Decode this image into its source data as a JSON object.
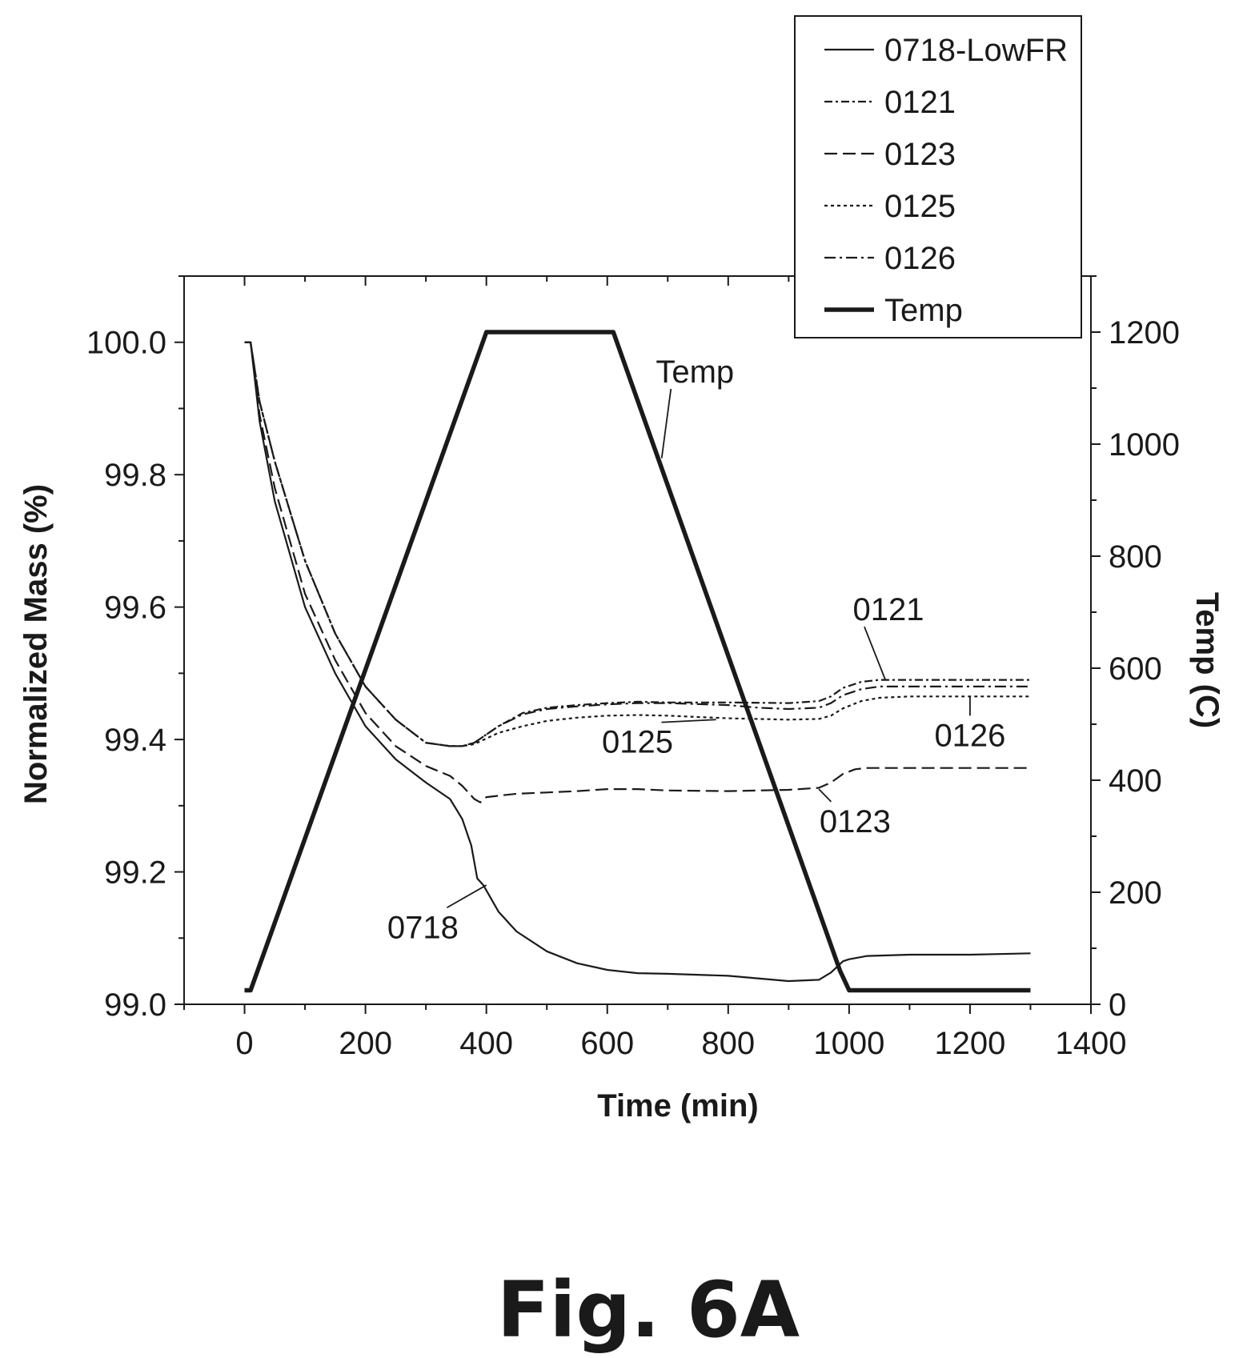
{
  "figure_label": "Fig. 6A",
  "chart_data": {
    "type": "line",
    "title": "",
    "xlabel": "Time (min)",
    "ylabel": "Normalized Mass (%)",
    "y2label": "Temp (C)",
    "xlim": [
      -100,
      1400
    ],
    "ylim": [
      99.0,
      100.1
    ],
    "y2lim": [
      0,
      1300
    ],
    "x_ticks": [
      0,
      200,
      400,
      600,
      800,
      1000,
      1200,
      1400
    ],
    "y_ticks": [
      99.0,
      99.2,
      99.4,
      99.6,
      99.8,
      100.0
    ],
    "y_tick_labels": [
      "99.0",
      "99.2",
      "99.4",
      "99.6",
      "99.8",
      "100.0"
    ],
    "y2_ticks": [
      0,
      200,
      400,
      600,
      800,
      1000,
      1200
    ],
    "grid": false,
    "legend_position": "top-right",
    "series": [
      {
        "name": "0718-LowFR",
        "axis": "left",
        "style": "solid",
        "x": [
          0,
          10,
          25,
          50,
          100,
          150,
          200,
          250,
          300,
          340,
          360,
          375,
          385,
          395,
          420,
          450,
          500,
          550,
          600,
          650,
          700,
          800,
          900,
          950,
          970,
          990,
          1000,
          1030,
          1100,
          1200,
          1300
        ],
        "y": [
          100.0,
          100.0,
          99.88,
          99.76,
          99.6,
          99.5,
          99.42,
          99.37,
          99.335,
          99.31,
          99.28,
          99.24,
          99.19,
          99.18,
          99.14,
          99.11,
          99.08,
          99.062,
          99.052,
          99.047,
          99.046,
          99.043,
          99.035,
          99.037,
          99.048,
          99.065,
          99.068,
          99.073,
          99.075,
          99.075,
          99.077
        ]
      },
      {
        "name": "0121",
        "axis": "left",
        "style": "dash-dot-short",
        "x": [
          0,
          10,
          25,
          50,
          100,
          150,
          200,
          250,
          300,
          340,
          360,
          380,
          420,
          460,
          500,
          550,
          600,
          650,
          700,
          800,
          900,
          950,
          970,
          990,
          1020,
          1050,
          1100,
          1200,
          1300
        ],
        "y": [
          100.0,
          100.0,
          99.91,
          99.82,
          99.67,
          99.56,
          99.48,
          99.43,
          99.395,
          99.39,
          99.39,
          99.395,
          99.42,
          99.44,
          99.448,
          99.452,
          99.455,
          99.457,
          99.456,
          99.456,
          99.455,
          99.458,
          99.465,
          99.478,
          99.487,
          99.49,
          99.49,
          99.49,
          99.49
        ]
      },
      {
        "name": "0123",
        "axis": "left",
        "style": "long-dash",
        "x": [
          0,
          10,
          25,
          50,
          100,
          150,
          200,
          250,
          300,
          340,
          360,
          380,
          390,
          400,
          420,
          450,
          500,
          550,
          600,
          650,
          700,
          800,
          900,
          950,
          970,
          990,
          1010,
          1030,
          1050,
          1100,
          1200,
          1300
        ],
        "y": [
          100.0,
          100.0,
          99.89,
          99.78,
          99.62,
          99.52,
          99.44,
          99.39,
          99.36,
          99.345,
          99.33,
          99.31,
          99.305,
          99.313,
          99.315,
          99.318,
          99.32,
          99.322,
          99.325,
          99.325,
          99.323,
          99.322,
          99.324,
          99.327,
          99.335,
          99.348,
          99.355,
          99.357,
          99.357,
          99.357,
          99.357,
          99.357
        ]
      },
      {
        "name": "0125",
        "axis": "left",
        "style": "dotted",
        "x": [
          0,
          10,
          25,
          50,
          100,
          150,
          200,
          250,
          300,
          340,
          360,
          380,
          420,
          460,
          500,
          550,
          600,
          650,
          700,
          750,
          800,
          900,
          950,
          970,
          990,
          1020,
          1050,
          1100,
          1200,
          1300
        ],
        "y": [
          100.0,
          100.0,
          99.91,
          99.82,
          99.67,
          99.56,
          99.48,
          99.43,
          99.395,
          99.39,
          99.39,
          99.393,
          99.41,
          99.42,
          99.428,
          99.433,
          99.436,
          99.437,
          99.436,
          99.434,
          99.432,
          99.43,
          99.431,
          99.436,
          99.447,
          99.458,
          99.463,
          99.465,
          99.465,
          99.465
        ]
      },
      {
        "name": "0126",
        "axis": "left",
        "style": "dash-dot",
        "x": [
          0,
          10,
          25,
          50,
          100,
          150,
          200,
          250,
          300,
          340,
          360,
          380,
          420,
          460,
          500,
          550,
          600,
          650,
          700,
          800,
          850,
          900,
          950,
          970,
          990,
          1020,
          1050,
          1100,
          1200,
          1300
        ],
        "y": [
          100.0,
          100.0,
          99.91,
          99.82,
          99.67,
          99.56,
          99.48,
          99.43,
          99.395,
          99.39,
          99.39,
          99.395,
          99.42,
          99.438,
          99.446,
          99.45,
          99.453,
          99.455,
          99.455,
          99.452,
          99.448,
          99.446,
          99.448,
          99.455,
          99.467,
          99.476,
          99.48,
          99.48,
          99.48,
          99.48
        ]
      },
      {
        "name": "Temp",
        "axis": "right",
        "style": "thick",
        "x": [
          0,
          10,
          400,
          610,
          985,
          1000,
          1300
        ],
        "y": [
          25,
          25,
          1200,
          1200,
          60,
          25,
          25
        ]
      }
    ],
    "annotations": [
      {
        "text": "Temp",
        "x": 745,
        "y2": 1110,
        "target_x": 690,
        "target_y2": 975
      },
      {
        "text": "0121",
        "x": 1065,
        "y": 99.58,
        "target_x": 1060,
        "target_y": 99.49
      },
      {
        "text": "0125",
        "x": 650,
        "y": 99.38,
        "target_x": 780,
        "target_y": 99.43
      },
      {
        "text": "0126",
        "x": 1200,
        "y": 99.39,
        "target_x": 1200,
        "target_y": 99.465
      },
      {
        "text": "0123",
        "x": 1010,
        "y": 99.26,
        "target_x": 950,
        "target_y": 99.325
      },
      {
        "text": "0718",
        "x": 295,
        "y": 99.1,
        "target_x": 400,
        "target_y": 99.18
      }
    ]
  }
}
